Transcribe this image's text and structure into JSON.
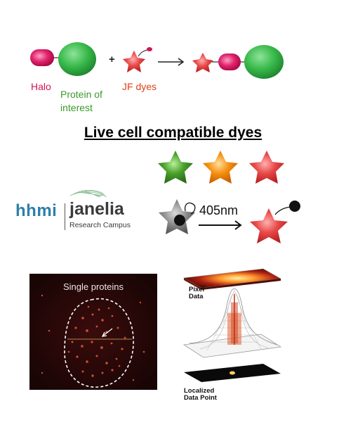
{
  "labels": {
    "halo": "Halo",
    "protein_of": "Protein of",
    "interest": "interest",
    "jf_dyes": "JF dyes",
    "plus": "+",
    "title": "Live cell compatible dyes",
    "hhmi": "hhmi",
    "janelia": "janelia",
    "research_campus": "Research Campus",
    "wavelength": "405nm",
    "single_proteins": "Single proteins",
    "pixel": "Pixel",
    "data": "Data",
    "localized": "Localized",
    "data_point": "Data Point"
  },
  "colors": {
    "halo": "#d4145a",
    "protein": "#39b54a",
    "dye": "#e03a3a",
    "green_star": "#3a9a2a",
    "orange_star": "#f08a00",
    "red_star": "#e04545",
    "gray_star": "#7a7a7a",
    "hhmi": "#2f7fa8"
  }
}
